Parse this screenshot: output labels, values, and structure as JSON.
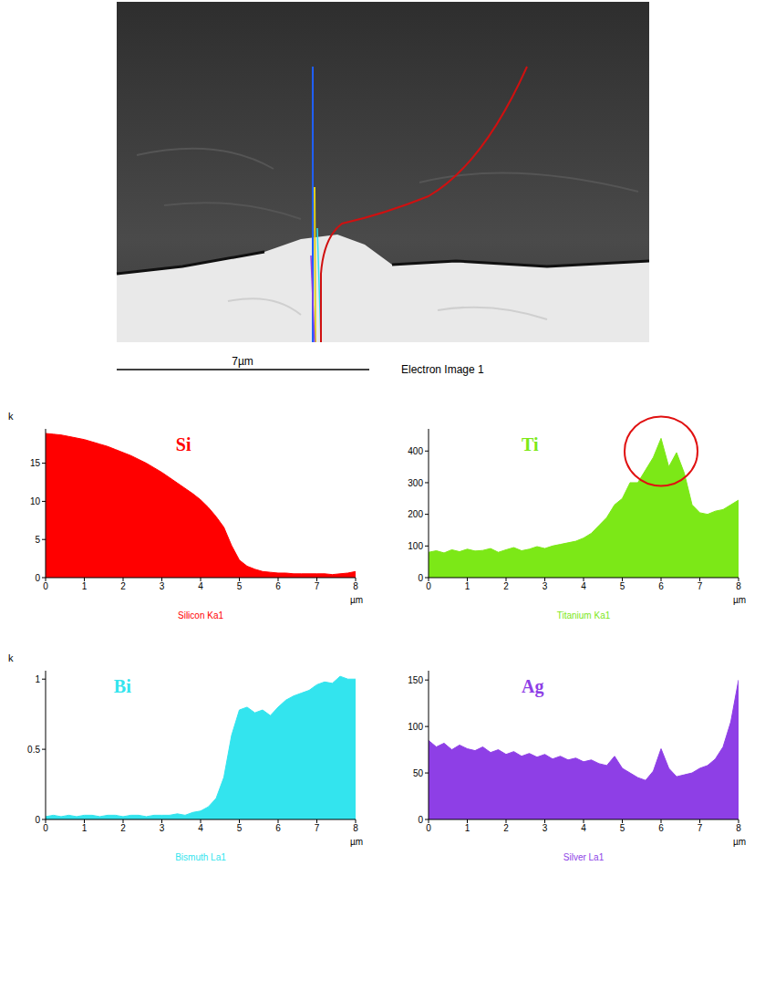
{
  "electron_image": {
    "scale_bar_label": "7µm",
    "title": "Electron Image 1"
  },
  "chart_data": [
    {
      "type": "area",
      "title": "Si",
      "caption": "Silicon Ka1",
      "y_label": "k",
      "x_label": "µm",
      "color": "#ff0000",
      "x": [
        0,
        0.2,
        0.4,
        0.6,
        0.8,
        1,
        1.2,
        1.4,
        1.6,
        1.8,
        2,
        2.2,
        2.4,
        2.6,
        2.8,
        3,
        3.2,
        3.4,
        3.6,
        3.8,
        4,
        4.2,
        4.4,
        4.6,
        4.8,
        5,
        5.2,
        5.4,
        5.6,
        5.8,
        6,
        6.2,
        6.4,
        6.6,
        6.8,
        7,
        7.2,
        7.4,
        7.6,
        7.8,
        8
      ],
      "values": [
        18.9,
        18.8,
        18.7,
        18.5,
        18.3,
        18.1,
        17.8,
        17.5,
        17.2,
        16.8,
        16.4,
        16.0,
        15.5,
        15.0,
        14.4,
        13.8,
        13.1,
        12.4,
        11.7,
        11.0,
        10.2,
        9.2,
        8.0,
        6.6,
        4.2,
        2.3,
        1.5,
        1.1,
        0.8,
        0.7,
        0.6,
        0.6,
        0.5,
        0.5,
        0.5,
        0.5,
        0.5,
        0.4,
        0.5,
        0.6,
        0.8
      ],
      "xlim": [
        0,
        8
      ],
      "xticks": [
        0,
        1,
        2,
        3,
        4,
        5,
        6,
        7,
        8
      ],
      "ylim": [
        0,
        19.5
      ],
      "yticks": [
        0,
        5,
        10,
        15
      ]
    },
    {
      "type": "area",
      "title": "Ti",
      "caption": "Titanium Ka1",
      "x_label": "µm",
      "color": "#7ce817",
      "x": [
        0,
        0.2,
        0.4,
        0.6,
        0.8,
        1,
        1.2,
        1.4,
        1.6,
        1.8,
        2,
        2.2,
        2.4,
        2.6,
        2.8,
        3,
        3.2,
        3.4,
        3.6,
        3.8,
        4,
        4.2,
        4.4,
        4.6,
        4.8,
        5,
        5.2,
        5.4,
        5.6,
        5.8,
        6,
        6.2,
        6.4,
        6.6,
        6.8,
        7,
        7.2,
        7.4,
        7.6,
        7.8,
        8
      ],
      "values": [
        80,
        85,
        78,
        88,
        82,
        90,
        84,
        86,
        92,
        80,
        88,
        95,
        85,
        90,
        98,
        92,
        100,
        105,
        110,
        115,
        125,
        140,
        165,
        190,
        230,
        250,
        300,
        300,
        340,
        380,
        440,
        350,
        395,
        330,
        230,
        205,
        200,
        210,
        215,
        230,
        245
      ],
      "xlim": [
        0,
        8
      ],
      "xticks": [
        0,
        1,
        2,
        3,
        4,
        5,
        6,
        7,
        8
      ],
      "ylim": [
        0,
        470
      ],
      "yticks": [
        0,
        100,
        200,
        300,
        400
      ]
    },
    {
      "type": "area",
      "title": "Bi",
      "caption": "Bismuth La1",
      "y_label": "k",
      "x_label": "µm",
      "color": "#33e4ee",
      "x": [
        0,
        0.2,
        0.4,
        0.6,
        0.8,
        1,
        1.2,
        1.4,
        1.6,
        1.8,
        2,
        2.2,
        2.4,
        2.6,
        2.8,
        3,
        3.2,
        3.4,
        3.6,
        3.8,
        4,
        4.2,
        4.4,
        4.6,
        4.8,
        5,
        5.2,
        5.4,
        5.6,
        5.8,
        6,
        6.2,
        6.4,
        6.6,
        6.8,
        7,
        7.2,
        7.4,
        7.6,
        7.8,
        8
      ],
      "values": [
        0.02,
        0.03,
        0.02,
        0.03,
        0.02,
        0.03,
        0.03,
        0.02,
        0.03,
        0.03,
        0.02,
        0.03,
        0.03,
        0.02,
        0.03,
        0.03,
        0.03,
        0.04,
        0.03,
        0.05,
        0.06,
        0.09,
        0.15,
        0.3,
        0.6,
        0.78,
        0.8,
        0.76,
        0.78,
        0.74,
        0.8,
        0.85,
        0.88,
        0.9,
        0.92,
        0.96,
        0.98,
        0.97,
        1.02,
        1.0,
        1.0
      ],
      "xlim": [
        0,
        8
      ],
      "xticks": [
        0,
        1,
        2,
        3,
        4,
        5,
        6,
        7,
        8
      ],
      "ylim": [
        0,
        1.06
      ],
      "yticks": [
        0,
        0.5,
        1
      ]
    },
    {
      "type": "area",
      "title": "Ag",
      "caption": "Silver La1",
      "x_label": "µm",
      "color": "#8e3fe6",
      "x": [
        0,
        0.2,
        0.4,
        0.6,
        0.8,
        1,
        1.2,
        1.4,
        1.6,
        1.8,
        2,
        2.2,
        2.4,
        2.6,
        2.8,
        3,
        3.2,
        3.4,
        3.6,
        3.8,
        4,
        4.2,
        4.4,
        4.6,
        4.8,
        5,
        5.2,
        5.4,
        5.6,
        5.8,
        6,
        6.2,
        6.4,
        6.6,
        6.8,
        7,
        7.2,
        7.4,
        7.6,
        7.8,
        8
      ],
      "values": [
        85,
        78,
        82,
        75,
        80,
        76,
        74,
        78,
        72,
        75,
        70,
        73,
        68,
        71,
        67,
        70,
        65,
        68,
        64,
        66,
        62,
        64,
        60,
        58,
        68,
        55,
        50,
        45,
        42,
        52,
        76,
        55,
        46,
        48,
        50,
        55,
        58,
        65,
        78,
        105,
        150
      ],
      "xlim": [
        0,
        8
      ],
      "xticks": [
        0,
        1,
        2,
        3,
        4,
        5,
        6,
        7,
        8
      ],
      "ylim": [
        0,
        160
      ],
      "yticks": [
        0,
        50,
        100,
        150
      ]
    }
  ]
}
